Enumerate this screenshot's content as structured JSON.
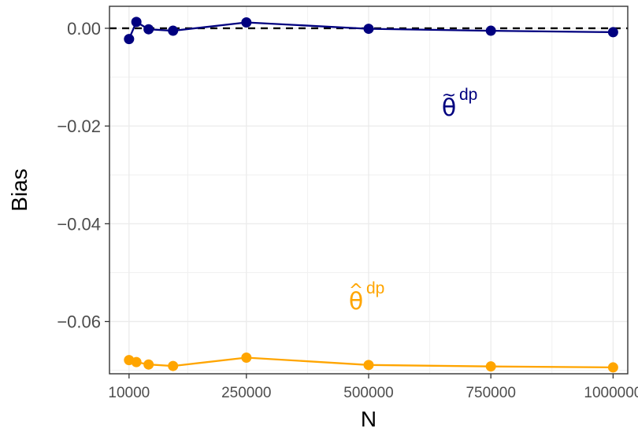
{
  "chart_data": {
    "type": "line",
    "xlabel": "N",
    "ylabel": "Bias",
    "x": [
      10000,
      25000,
      50000,
      100000,
      250000,
      500000,
      750000,
      1000000
    ],
    "xticks": [
      10000,
      250000,
      500000,
      750000,
      1000000
    ],
    "xtick_labels": [
      "10000",
      "250000",
      "500000",
      "750000",
      "1000000"
    ],
    "yticks": [
      0.0,
      -0.02,
      -0.04,
      -0.06
    ],
    "ytick_labels": [
      "0.00",
      "−0.02",
      "−0.04",
      "−0.06"
    ],
    "xlim": [
      -30000,
      1030000
    ],
    "ylim": [
      -0.0707,
      0.0045
    ],
    "reference_line": {
      "y": 0,
      "style": "dashed",
      "color": "#000000"
    },
    "grid": true,
    "series": [
      {
        "name_base": "θ",
        "name_accent": "~",
        "name_sup": "dp",
        "color": "#00007f",
        "values": [
          -0.0022,
          0.0013,
          -0.0002,
          -0.0005,
          0.0012,
          -0.0001,
          -0.0005,
          -0.0008
        ]
      },
      {
        "name_base": "θ",
        "name_accent": "^",
        "name_sup": "dp",
        "color": "#ffa500",
        "values": [
          -0.0679,
          -0.0683,
          -0.0688,
          -0.0691,
          -0.0674,
          -0.0689,
          -0.0692,
          -0.0694
        ]
      }
    ]
  }
}
